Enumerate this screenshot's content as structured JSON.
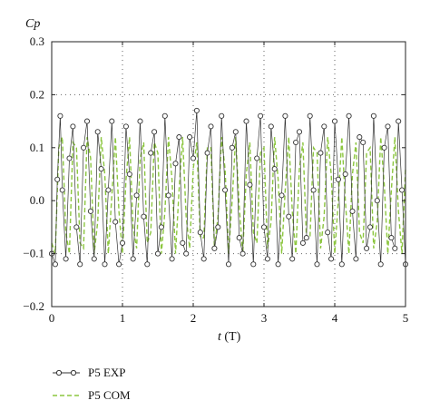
{
  "chart_data": {
    "type": "line",
    "ylabel": "Cp",
    "xlabel_var": "t",
    "xlabel_unit": " (T)",
    "xlim": [
      0,
      5
    ],
    "ylim": [
      -0.2,
      0.3
    ],
    "x_ticks": [
      0,
      1,
      2,
      3,
      4,
      5
    ],
    "x_tick_labels": [
      "0",
      "1",
      "2",
      "3",
      "4",
      "5"
    ],
    "y_ticks": [
      -0.2,
      -0.1,
      0.0,
      0.1,
      0.2,
      0.3
    ],
    "y_tick_labels": [
      "−0.2",
      "−0.1",
      "0.0",
      "0.1",
      "0.2",
      "0.3"
    ],
    "grid": "dotted at x = 1, 2, 3, 4 and y = 0.2, -0.1",
    "legend_position": "bottom-left",
    "series": [
      {
        "name": "P5 EXP",
        "color": "#333333",
        "marker": "open-circle",
        "x": [
          0.0,
          0.05,
          0.08,
          0.12,
          0.15,
          0.2,
          0.25,
          0.3,
          0.35,
          0.4,
          0.45,
          0.5,
          0.55,
          0.6,
          0.65,
          0.7,
          0.75,
          0.8,
          0.85,
          0.9,
          0.95,
          1.0,
          1.05,
          1.1,
          1.15,
          1.2,
          1.25,
          1.3,
          1.35,
          1.4,
          1.45,
          1.5,
          1.55,
          1.6,
          1.65,
          1.7,
          1.75,
          1.8,
          1.85,
          1.9,
          1.95,
          2.0,
          2.05,
          2.1,
          2.15,
          2.2,
          2.25,
          2.3,
          2.35,
          2.4,
          2.45,
          2.5,
          2.55,
          2.6,
          2.65,
          2.7,
          2.75,
          2.8,
          2.85,
          2.9,
          2.95,
          3.0,
          3.05,
          3.1,
          3.15,
          3.2,
          3.25,
          3.3,
          3.35,
          3.4,
          3.45,
          3.5,
          3.55,
          3.6,
          3.65,
          3.7,
          3.75,
          3.8,
          3.85,
          3.9,
          3.95,
          4.0,
          4.05,
          4.1,
          4.15,
          4.2,
          4.25,
          4.3,
          4.35,
          4.4,
          4.45,
          4.5,
          4.55,
          4.6,
          4.65,
          4.7,
          4.75,
          4.8,
          4.85,
          4.9,
          4.95,
          5.0
        ],
        "y": [
          -0.1,
          -0.12,
          0.04,
          0.16,
          0.02,
          -0.11,
          0.08,
          0.14,
          -0.05,
          -0.12,
          0.1,
          0.15,
          -0.02,
          -0.11,
          0.13,
          0.06,
          -0.12,
          0.02,
          0.15,
          -0.04,
          -0.12,
          -0.08,
          0.14,
          0.05,
          -0.11,
          0.01,
          0.15,
          -0.03,
          -0.12,
          0.09,
          0.13,
          -0.1,
          -0.05,
          0.16,
          0.01,
          -0.11,
          0.07,
          0.12,
          -0.08,
          -0.1,
          0.12,
          0.08,
          0.17,
          -0.06,
          -0.11,
          0.09,
          0.14,
          -0.09,
          -0.05,
          0.16,
          0.02,
          -0.12,
          0.1,
          0.13,
          -0.07,
          -0.1,
          0.15,
          0.03,
          -0.12,
          0.08,
          0.16,
          -0.05,
          -0.11,
          0.14,
          0.06,
          -0.12,
          0.01,
          0.16,
          -0.03,
          -0.11,
          0.11,
          0.13,
          -0.08,
          -0.07,
          0.16,
          0.02,
          -0.12,
          0.09,
          0.14,
          -0.06,
          -0.11,
          0.15,
          0.04,
          -0.12,
          0.05,
          0.16,
          -0.02,
          -0.11,
          0.12,
          0.11,
          -0.09,
          -0.05,
          0.16,
          0.0,
          -0.12,
          0.1,
          0.14,
          -0.07,
          -0.09,
          0.15,
          0.02,
          -0.12
        ]
      },
      {
        "name": "P5 COM",
        "color": "#8cc63f",
        "marker": "dashed-line",
        "x": [
          0.0,
          0.05,
          0.1,
          0.15,
          0.2,
          0.25,
          0.3,
          0.35,
          0.4,
          0.45,
          0.5,
          0.55,
          0.6,
          0.65,
          0.7,
          0.75,
          0.8,
          0.85,
          0.9,
          0.95,
          1.0,
          1.05,
          1.1,
          1.15,
          1.2,
          1.25,
          1.3,
          1.35,
          1.4,
          1.45,
          1.5,
          1.55,
          1.6,
          1.65,
          1.7,
          1.75,
          1.8,
          1.85,
          1.9,
          1.95,
          2.0,
          2.05,
          2.1,
          2.15,
          2.2,
          2.25,
          2.3,
          2.35,
          2.4,
          2.45,
          2.5,
          2.55,
          2.6,
          2.65,
          2.7,
          2.75,
          2.8,
          2.85,
          2.9,
          2.95,
          3.0,
          3.05,
          3.1,
          3.15,
          3.2,
          3.25,
          3.3,
          3.35,
          3.4,
          3.45,
          3.5,
          3.55,
          3.6,
          3.65,
          3.7,
          3.75,
          3.8,
          3.85,
          3.9,
          3.95,
          4.0,
          4.05,
          4.1,
          4.15,
          4.2,
          4.25,
          4.3,
          4.35,
          4.4,
          4.45,
          4.5,
          4.55,
          4.6,
          4.65,
          4.7,
          4.75,
          4.8,
          4.85,
          4.9,
          4.95,
          5.0
        ],
        "y": [
          -0.08,
          -0.1,
          0.1,
          0.12,
          -0.06,
          -0.1,
          0.11,
          0.1,
          -0.08,
          -0.09,
          0.12,
          0.08,
          -0.1,
          -0.04,
          0.12,
          0.05,
          -0.1,
          0.01,
          0.12,
          -0.02,
          -0.1,
          0.04,
          0.12,
          -0.05,
          -0.09,
          0.08,
          0.11,
          -0.08,
          -0.06,
          0.11,
          0.09,
          -0.1,
          -0.02,
          0.12,
          0.04,
          -0.1,
          0.02,
          0.12,
          -0.03,
          -0.09,
          0.06,
          0.11,
          -0.07,
          -0.07,
          0.1,
          0.1,
          -0.09,
          -0.03,
          0.12,
          0.06,
          -0.1,
          0.0,
          0.12,
          -0.01,
          -0.1,
          0.05,
          0.11,
          -0.06,
          -0.08,
          0.09,
          0.1,
          -0.09,
          -0.04,
          0.12,
          0.04,
          -0.1,
          0.02,
          0.12,
          -0.02,
          -0.1,
          0.06,
          0.11,
          -0.07,
          -0.07,
          0.1,
          0.09,
          -0.09,
          -0.03,
          0.12,
          0.05,
          -0.1,
          0.0,
          0.12,
          0.0,
          -0.1,
          0.05,
          0.11,
          -0.06,
          -0.08,
          0.09,
          0.1,
          -0.09,
          -0.04,
          0.12,
          0.03,
          -0.1,
          0.02,
          0.12,
          -0.02,
          -0.1,
          0.06
        ]
      }
    ]
  }
}
